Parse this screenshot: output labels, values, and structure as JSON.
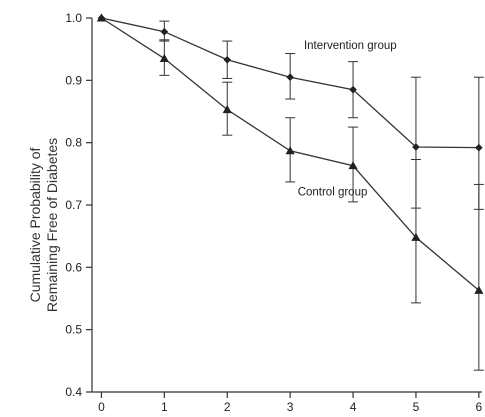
{
  "chart_data": {
    "type": "line",
    "title": "",
    "xlabel": "",
    "ylabel_lines": [
      "Cumulative Probability of",
      "Remaining Free of Diabetes"
    ],
    "xlim": [
      -0.15,
      6.05
    ],
    "ylim": [
      0.4,
      1.0
    ],
    "x_ticks": [
      0,
      1,
      2,
      3,
      4,
      5,
      6
    ],
    "x_tick_labels": [
      "0",
      "1",
      "2",
      "3",
      "4",
      "5",
      "6"
    ],
    "y_ticks": [
      0.4,
      0.5,
      0.6,
      0.7,
      0.8,
      0.9,
      1.0
    ],
    "y_tick_labels": [
      "0.4",
      "0.5",
      "0.6",
      "0.7",
      "0.8",
      "0.9",
      "1.0"
    ],
    "grid": false,
    "legend": "none",
    "series": [
      {
        "name": "Intervention group",
        "marker": "diamond",
        "x": [
          0,
          1,
          2,
          3,
          4,
          5,
          6
        ],
        "values": [
          1.0,
          0.978,
          0.933,
          0.905,
          0.885,
          0.793,
          0.792
        ],
        "err_low": [
          1.0,
          0.963,
          0.903,
          0.87,
          0.84,
          0.695,
          0.693
        ],
        "err_high": [
          1.0,
          0.995,
          0.963,
          0.943,
          0.93,
          0.905,
          0.905
        ],
        "label_x": 3.22,
        "label_y": 0.95
      },
      {
        "name": "Control group",
        "marker": "triangle",
        "x": [
          0,
          1,
          2,
          3,
          4,
          5,
          6
        ],
        "values": [
          1.0,
          0.935,
          0.853,
          0.787,
          0.763,
          0.648,
          0.563
        ],
        "err_low": [
          1.0,
          0.908,
          0.812,
          0.737,
          0.705,
          0.543,
          0.435
        ],
        "err_high": [
          1.0,
          0.965,
          0.897,
          0.84,
          0.825,
          0.773,
          0.733
        ],
        "label_x": 3.12,
        "label_y": 0.715
      }
    ]
  }
}
